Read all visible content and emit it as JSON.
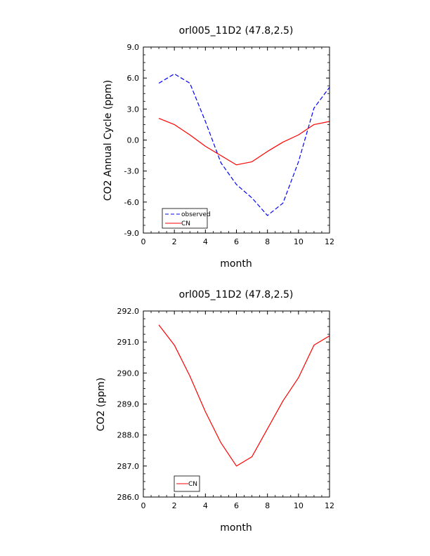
{
  "chart_data": [
    {
      "type": "line",
      "title": "orl005_11D2 (47.8,2.5)",
      "xlabel": "month",
      "ylabel": "CO2 Annual Cycle (ppm)",
      "xlim": [
        0,
        12
      ],
      "ylim": [
        -9,
        9
      ],
      "xticks": [
        0,
        2,
        4,
        6,
        8,
        10,
        12
      ],
      "xtick_labels": [
        "0",
        "2",
        "4",
        "6",
        "8",
        "10",
        "12"
      ],
      "yticks": [
        -9,
        -6,
        -3,
        0,
        3,
        6,
        9
      ],
      "ytick_labels": [
        "-9.0",
        "-6.0",
        "-3.0",
        "0.0",
        "3.0",
        "6.0",
        "9.0"
      ],
      "legend_position": "bottom-left",
      "series": [
        {
          "name": "observed",
          "color": "#0000ff",
          "dash": "dashed",
          "x": [
            1,
            2,
            3,
            4,
            5,
            6,
            7,
            8,
            9,
            10,
            11,
            12
          ],
          "values": [
            5.5,
            6.4,
            5.5,
            1.8,
            -2.2,
            -4.3,
            -5.6,
            -7.3,
            -6.1,
            -2.1,
            3.1,
            5.1
          ]
        },
        {
          "name": "CN",
          "color": "#ff0000",
          "dash": "solid",
          "x": [
            1,
            2,
            3,
            4,
            5,
            6,
            7,
            8,
            9,
            10,
            11,
            12
          ],
          "values": [
            2.1,
            1.5,
            0.5,
            -0.6,
            -1.5,
            -2.4,
            -2.1,
            -1.1,
            -0.2,
            0.5,
            1.5,
            1.8
          ]
        }
      ]
    },
    {
      "type": "line",
      "title": "orl005_11D2 (47.8,2.5)",
      "xlabel": "month",
      "ylabel": "CO2 (ppm)",
      "xlim": [
        0,
        12
      ],
      "ylim": [
        286,
        292
      ],
      "xticks": [
        0,
        2,
        4,
        6,
        8,
        10,
        12
      ],
      "xtick_labels": [
        "0",
        "2",
        "4",
        "6",
        "8",
        "10",
        "12"
      ],
      "yticks": [
        286,
        287,
        288,
        289,
        290,
        291,
        292
      ],
      "ytick_labels": [
        "286.0",
        "287.0",
        "288.0",
        "289.0",
        "290.0",
        "291.0",
        "292.0"
      ],
      "legend_position": "bottom-left",
      "series": [
        {
          "name": "CN",
          "color": "#ff0000",
          "dash": "solid",
          "x": [
            1,
            2,
            3,
            4,
            5,
            6,
            7,
            8,
            9,
            10,
            11,
            12
          ],
          "values": [
            291.55,
            290.9,
            289.9,
            288.75,
            287.75,
            287.0,
            287.3,
            288.2,
            289.1,
            289.85,
            290.9,
            291.2
          ]
        }
      ]
    }
  ]
}
